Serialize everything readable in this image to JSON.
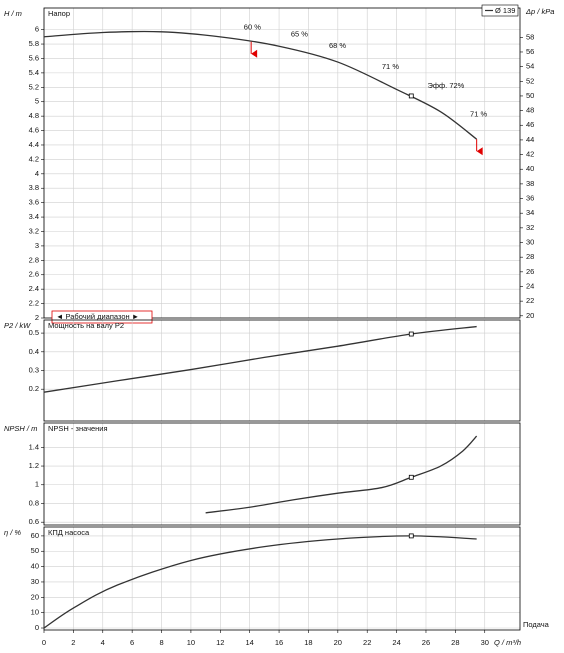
{
  "chart_data": [
    {
      "type": "line",
      "title": "Напор",
      "ylabel": "H / m",
      "y2label": "Δp / kPa",
      "xlim": [
        0,
        32.4
      ],
      "xticks": [
        0,
        2,
        4,
        6,
        8,
        10,
        12,
        14,
        16,
        18,
        20,
        22,
        24,
        26,
        28,
        30
      ],
      "ylim": [
        2,
        6.3
      ],
      "yticks": [
        2,
        2.2,
        2.4,
        2.6,
        2.8,
        3,
        3.2,
        3.4,
        3.6,
        3.8,
        4,
        4.2,
        4.4,
        4.6,
        4.8,
        5,
        5.2,
        5.4,
        5.6,
        5.8,
        6
      ],
      "y2lim": [
        19.7,
        62
      ],
      "y2ticks": [
        20,
        22,
        24,
        26,
        28,
        30,
        32,
        34,
        36,
        38,
        40,
        42,
        44,
        46,
        48,
        50,
        52,
        54,
        56,
        58
      ],
      "grid": true,
      "series": [
        {
          "name": "Ø 139",
          "color": "#333333",
          "x": [
            0,
            4,
            8,
            12,
            16,
            20,
            24,
            27,
            29.45
          ],
          "values": [
            5.9,
            5.96,
            5.97,
            5.9,
            5.77,
            5.55,
            5.17,
            4.86,
            4.48
          ]
        }
      ],
      "duty_point": {
        "x": 25,
        "y": 5.08
      },
      "range_limits": [
        14.1,
        29.45
      ],
      "range_label": "◄ Рабочий диапазон ►",
      "annotations": [
        "60 %",
        "65 %",
        "68 %",
        "71 %",
        "Эфф.  72%",
        "71 %"
      ]
    },
    {
      "type": "line",
      "title": "Мощность на валу P2",
      "ylabel": "P2 / kW",
      "xlim": [
        0,
        32.4
      ],
      "xticks": [
        0,
        2,
        4,
        6,
        8,
        10,
        12,
        14,
        16,
        18,
        20,
        22,
        24,
        26,
        28,
        30
      ],
      "ylim": [
        0.03,
        0.57
      ],
      "yticks": [
        0.2,
        0.3,
        0.4,
        0.5
      ],
      "grid": true,
      "series": [
        {
          "color": "#333333",
          "x": [
            0,
            5,
            10,
            15,
            20,
            25,
            29.45
          ],
          "values": [
            0.184,
            0.245,
            0.305,
            0.37,
            0.43,
            0.495,
            0.535
          ]
        }
      ],
      "duty_point": {
        "x": 25,
        "y": 0.495
      }
    },
    {
      "type": "line",
      "title": "NPSH - значения",
      "ylabel": "NPSH / m",
      "xlim": [
        0,
        32.4
      ],
      "xticks": [
        0,
        2,
        4,
        6,
        8,
        10,
        12,
        14,
        16,
        18,
        20,
        22,
        24,
        26,
        28,
        30
      ],
      "ylim": [
        0.57,
        1.66
      ],
      "yticks": [
        0.6,
        0.8,
        1,
        1.2,
        1.4
      ],
      "grid": true,
      "series": [
        {
          "color": "#333333",
          "x": [
            11,
            14,
            17,
            20,
            23,
            25,
            27,
            28.5,
            29.45
          ],
          "values": [
            0.7,
            0.76,
            0.84,
            0.91,
            0.97,
            1.08,
            1.2,
            1.36,
            1.52
          ]
        }
      ],
      "duty_point": {
        "x": 25,
        "y": 1.08
      }
    },
    {
      "type": "line",
      "title": "КПД насоса",
      "ylabel": "η / %",
      "xlabel": "Q / m³/h",
      "xnote": "Подача",
      "xlim": [
        0,
        32.4
      ],
      "xticks": [
        0,
        2,
        4,
        6,
        8,
        10,
        12,
        14,
        16,
        18,
        20,
        22,
        24,
        26,
        28,
        30
      ],
      "ylim": [
        -1.3,
        65.8
      ],
      "yticks": [
        0,
        10,
        20,
        30,
        40,
        50,
        60
      ],
      "grid": true,
      "series": [
        {
          "color": "#333333",
          "x": [
            0,
            2,
            5,
            10,
            15,
            20,
            25,
            29.45
          ],
          "values": [
            0,
            13,
            28,
            44,
            53,
            58,
            60,
            58
          ]
        }
      ],
      "duty_point": {
        "x": 25,
        "y": 60
      }
    }
  ]
}
